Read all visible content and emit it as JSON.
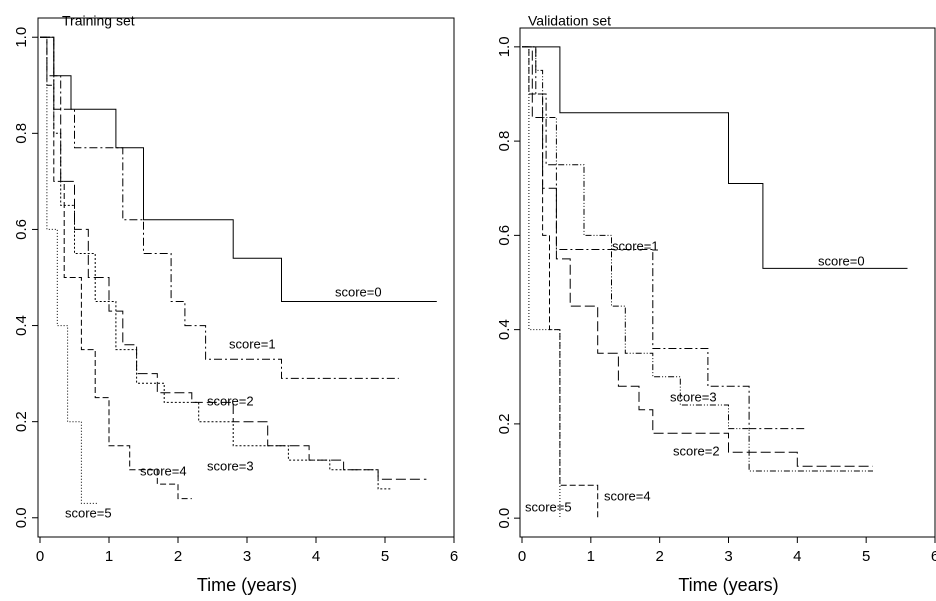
{
  "chart_data": [
    {
      "type": "line",
      "title": "Training set",
      "x_label": "Time (years)",
      "xlim": [
        0,
        6
      ],
      "xticks": [
        0,
        1,
        2,
        3,
        4,
        5,
        6
      ],
      "ylim": [
        -0.04,
        1.04
      ],
      "yticks": [
        {
          "value": 0,
          "label": "0.0"
        },
        {
          "value": 0.2,
          "label": "0.2"
        },
        {
          "value": 0.4,
          "label": "0.4"
        },
        {
          "value": 0.6,
          "label": "0.6"
        },
        {
          "value": 0.8,
          "label": "0.8"
        },
        {
          "value": 1,
          "label": "1.0"
        }
      ],
      "series": [
        {
          "name": "score=0",
          "color": "#000000",
          "dash": "none",
          "x": [
            0,
            0.2,
            0.2,
            0.45,
            0.45,
            1.1,
            1.1,
            1.5,
            1.5,
            2.8,
            2.8,
            3.5,
            3.5,
            5.75
          ],
          "values": [
            1,
            1,
            0.92,
            0.92,
            0.85,
            0.85,
            0.77,
            0.77,
            0.62,
            0.62,
            0.54,
            0.54,
            0.45,
            0.45
          ]
        },
        {
          "name": "score=1",
          "color": "#000000",
          "dash": "8,3,2,3",
          "x": [
            0,
            0.1,
            0.1,
            0.3,
            0.3,
            0.5,
            0.5,
            1.2,
            1.2,
            1.5,
            1.5,
            1.9,
            1.9,
            2.1,
            2.1,
            2.4,
            2.4,
            3.5,
            3.5,
            5.2
          ],
          "values": [
            1,
            1,
            0.92,
            0.92,
            0.85,
            0.85,
            0.77,
            0.77,
            0.62,
            0.62,
            0.55,
            0.55,
            0.45,
            0.45,
            0.4,
            0.4,
            0.33,
            0.33,
            0.29,
            0.29
          ]
        },
        {
          "name": "score=2",
          "color": "#000000",
          "dash": "10,4",
          "x": [
            0,
            0.2,
            0.2,
            0.3,
            0.3,
            0.5,
            0.5,
            0.7,
            0.7,
            1.0,
            1.0,
            1.2,
            1.2,
            1.4,
            1.4,
            1.7,
            1.7,
            2.2,
            2.2,
            2.8,
            2.8,
            3.3,
            3.3,
            3.9,
            3.9,
            4.4,
            4.4,
            4.9,
            4.9,
            5.6
          ],
          "values": [
            1,
            1,
            0.85,
            0.85,
            0.7,
            0.7,
            0.6,
            0.6,
            0.5,
            0.5,
            0.43,
            0.43,
            0.36,
            0.36,
            0.3,
            0.3,
            0.26,
            0.26,
            0.24,
            0.24,
            0.2,
            0.2,
            0.15,
            0.15,
            0.12,
            0.12,
            0.1,
            0.1,
            0.08,
            0.08
          ]
        },
        {
          "name": "score=3",
          "color": "#000000",
          "dash": "2,2",
          "x": [
            0,
            0.2,
            0.2,
            0.3,
            0.3,
            0.5,
            0.5,
            0.8,
            0.8,
            1.1,
            1.1,
            1.4,
            1.4,
            1.8,
            1.8,
            2.3,
            2.3,
            2.8,
            2.8,
            3.6,
            3.6,
            4.2,
            4.2,
            4.9,
            4.9,
            5.1
          ],
          "values": [
            1,
            1,
            0.8,
            0.8,
            0.65,
            0.65,
            0.55,
            0.55,
            0.45,
            0.45,
            0.35,
            0.35,
            0.28,
            0.28,
            0.24,
            0.24,
            0.2,
            0.2,
            0.15,
            0.15,
            0.12,
            0.12,
            0.1,
            0.1,
            0.06,
            0.06
          ]
        },
        {
          "name": "score=4",
          "color": "#000000",
          "dash": "6,3",
          "x": [
            0,
            0.1,
            0.1,
            0.2,
            0.2,
            0.35,
            0.35,
            0.6,
            0.6,
            0.8,
            0.8,
            1.0,
            1.0,
            1.3,
            1.3,
            1.7,
            1.7,
            2.0,
            2.0,
            2.2
          ],
          "values": [
            1,
            1,
            0.9,
            0.9,
            0.7,
            0.7,
            0.5,
            0.5,
            0.35,
            0.35,
            0.25,
            0.25,
            0.15,
            0.15,
            0.1,
            0.1,
            0.07,
            0.07,
            0.04,
            0.04
          ]
        },
        {
          "name": "score=5",
          "color": "#000000",
          "dash": "1,2",
          "x": [
            0,
            0.1,
            0.1,
            0.25,
            0.25,
            0.4,
            0.4,
            0.6,
            0.6,
            0.85
          ],
          "values": [
            1,
            1,
            0.6,
            0.6,
            0.4,
            0.4,
            0.2,
            0.2,
            0.03,
            0.03
          ]
        }
      ]
    },
    {
      "type": "line",
      "title": "Validation set",
      "x_label": "Time (years)",
      "xlim": [
        0,
        6
      ],
      "xticks": [
        0,
        1,
        2,
        3,
        4,
        5,
        6
      ],
      "ylim": [
        -0.04,
        1.04
      ],
      "yticks": [
        {
          "value": 0,
          "label": "0.0"
        },
        {
          "value": 0.2,
          "label": "0.2"
        },
        {
          "value": 0.4,
          "label": "0.4"
        },
        {
          "value": 0.6,
          "label": "0.6"
        },
        {
          "value": 0.8,
          "label": "0.8"
        },
        {
          "value": 1,
          "label": "1.0"
        }
      ],
      "series": [
        {
          "name": "score=0",
          "color": "#000000",
          "dash": "none",
          "x": [
            0,
            0.55,
            0.55,
            3.0,
            3.0,
            3.5,
            3.5,
            5.6
          ],
          "values": [
            1,
            1,
            0.86,
            0.86,
            0.71,
            0.71,
            0.53,
            0.53
          ]
        },
        {
          "name": "score=1",
          "color": "#000000",
          "dash": "8,3,2,3",
          "x": [
            0,
            0.2,
            0.2,
            0.35,
            0.35,
            0.5,
            0.5,
            1.9,
            1.9,
            2.7,
            2.7,
            3.3,
            3.3,
            4.1
          ],
          "values": [
            1,
            1,
            0.9,
            0.9,
            0.75,
            0.75,
            0.57,
            0.57,
            0.36,
            0.36,
            0.28,
            0.28,
            0.19,
            0.19
          ]
        },
        {
          "name": "score=3",
          "color": "#000000",
          "dash": "6,2,1,2,1,2",
          "x": [
            0,
            0.2,
            0.2,
            0.3,
            0.3,
            0.5,
            0.5,
            0.9,
            0.9,
            1.3,
            1.3,
            1.5,
            1.5,
            1.9,
            1.9,
            2.3,
            2.3,
            3.0,
            3.0,
            3.3,
            3.3,
            5.1
          ],
          "values": [
            1,
            1,
            0.95,
            0.95,
            0.85,
            0.85,
            0.75,
            0.75,
            0.6,
            0.6,
            0.45,
            0.45,
            0.35,
            0.35,
            0.3,
            0.3,
            0.24,
            0.24,
            0.19,
            0.19,
            0.1,
            0.1
          ]
        },
        {
          "name": "score=2",
          "color": "#000000",
          "dash": "10,4",
          "x": [
            0,
            0.15,
            0.15,
            0.3,
            0.3,
            0.5,
            0.5,
            0.7,
            0.7,
            1.1,
            1.1,
            1.4,
            1.4,
            1.7,
            1.7,
            1.9,
            1.9,
            3.0,
            3.0,
            4.0,
            4.0,
            5.1
          ],
          "values": [
            1,
            1,
            0.85,
            0.85,
            0.7,
            0.7,
            0.55,
            0.55,
            0.45,
            0.45,
            0.35,
            0.35,
            0.28,
            0.28,
            0.23,
            0.23,
            0.18,
            0.18,
            0.14,
            0.14,
            0.11,
            0.11
          ]
        },
        {
          "name": "score=4",
          "color": "#000000",
          "dash": "6,3",
          "x": [
            0,
            0.1,
            0.1,
            0.3,
            0.3,
            0.4,
            0.4,
            0.55,
            0.55,
            1.1,
            1.1
          ],
          "values": [
            1,
            1,
            0.9,
            0.9,
            0.6,
            0.6,
            0.4,
            0.4,
            0.07,
            0.07,
            0
          ]
        },
        {
          "name": "score=5",
          "color": "#000000",
          "dash": "1,2",
          "x": [
            0,
            0.1,
            0.1,
            0.55,
            0.55
          ],
          "values": [
            1,
            1,
            0.4,
            0.4,
            0
          ]
        }
      ]
    }
  ]
}
